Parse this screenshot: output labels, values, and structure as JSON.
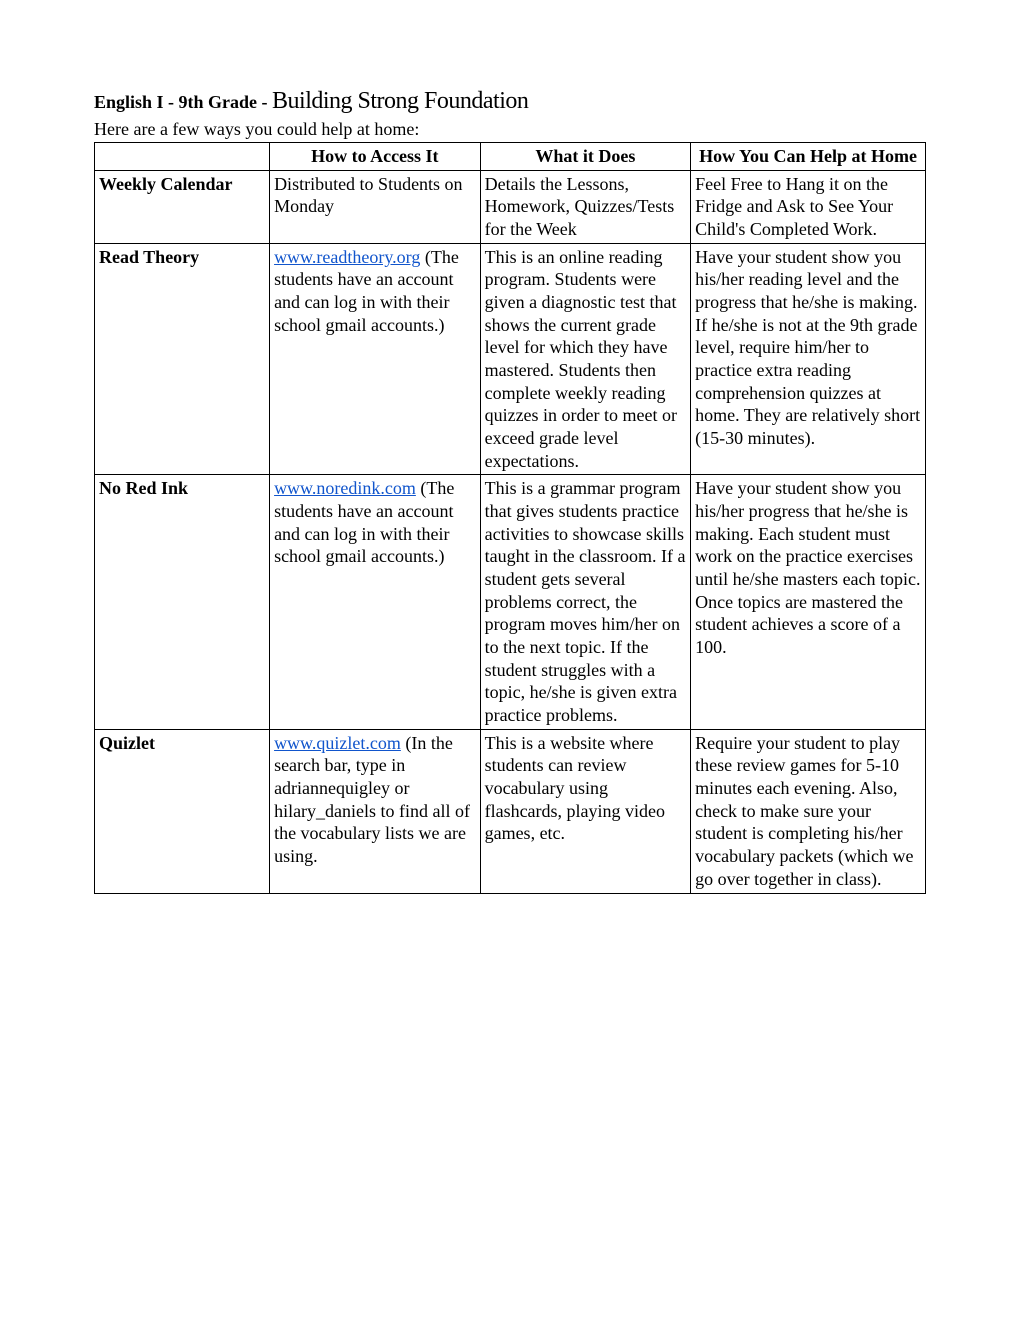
{
  "title": {
    "prefix": "English I - 9th Grade - ",
    "script": "Building Strong Foundation"
  },
  "intro": "Here are a few ways you could help at home:",
  "headers": {
    "resource": "",
    "access": "How to Access It",
    "does": "What it Does",
    "help": "How You Can Help at Home"
  },
  "rows": [
    {
      "name": "Weekly Calendar",
      "access_link": "",
      "access_text": "Distributed to Students on Monday",
      "does": "Details the Lessons, Homework, Quizzes/Tests for the Week",
      "help": "Feel Free to Hang it on the Fridge and Ask to See Your Child's Completed Work."
    },
    {
      "name": "Read Theory",
      "access_link": "www.readtheory.org",
      "access_text": " (The students have an account and can log in with their school gmail accounts.)",
      "does": "This is an online reading program.  Students were given a diagnostic test that shows the current grade level for which they have mastered.  Students then complete weekly reading quizzes in order to meet or exceed grade level expectations.",
      "help": "Have your student show you his/her reading level and the progress that he/she is making.  If he/she is not at the 9th grade level, require him/her to practice extra reading comprehension quizzes at home.  They are relatively short (15-30 minutes)."
    },
    {
      "name": "No Red Ink",
      "access_link": "www.noredink.com",
      "access_text": " (The students have an account and can log in with their school gmail accounts.)",
      "does": "This is a grammar program that gives students practice activities to showcase skills taught in the classroom.  If a student gets several problems correct, the program moves him/her on to the next topic.  If the student struggles with a topic, he/she is given extra practice problems.",
      "help": "Have your student show you his/her progress that he/she is making.  Each student must work on the practice exercises until he/she masters each topic.  Once topics are mastered the student achieves a score of a 100."
    },
    {
      "name": "Quizlet",
      "access_link": "www.quizlet.com",
      "access_text": " (In the search bar, type in adriannequigley or hilary_daniels to find all of the vocabulary lists we are using.",
      "does": "This is a website where students can review vocabulary using flashcards, playing video games, etc.",
      "help": "Require your student to play these review games for 5-10 minutes each evening.  Also, check to make sure your student is completing his/her vocabulary packets (which we go over together in class)."
    }
  ]
}
